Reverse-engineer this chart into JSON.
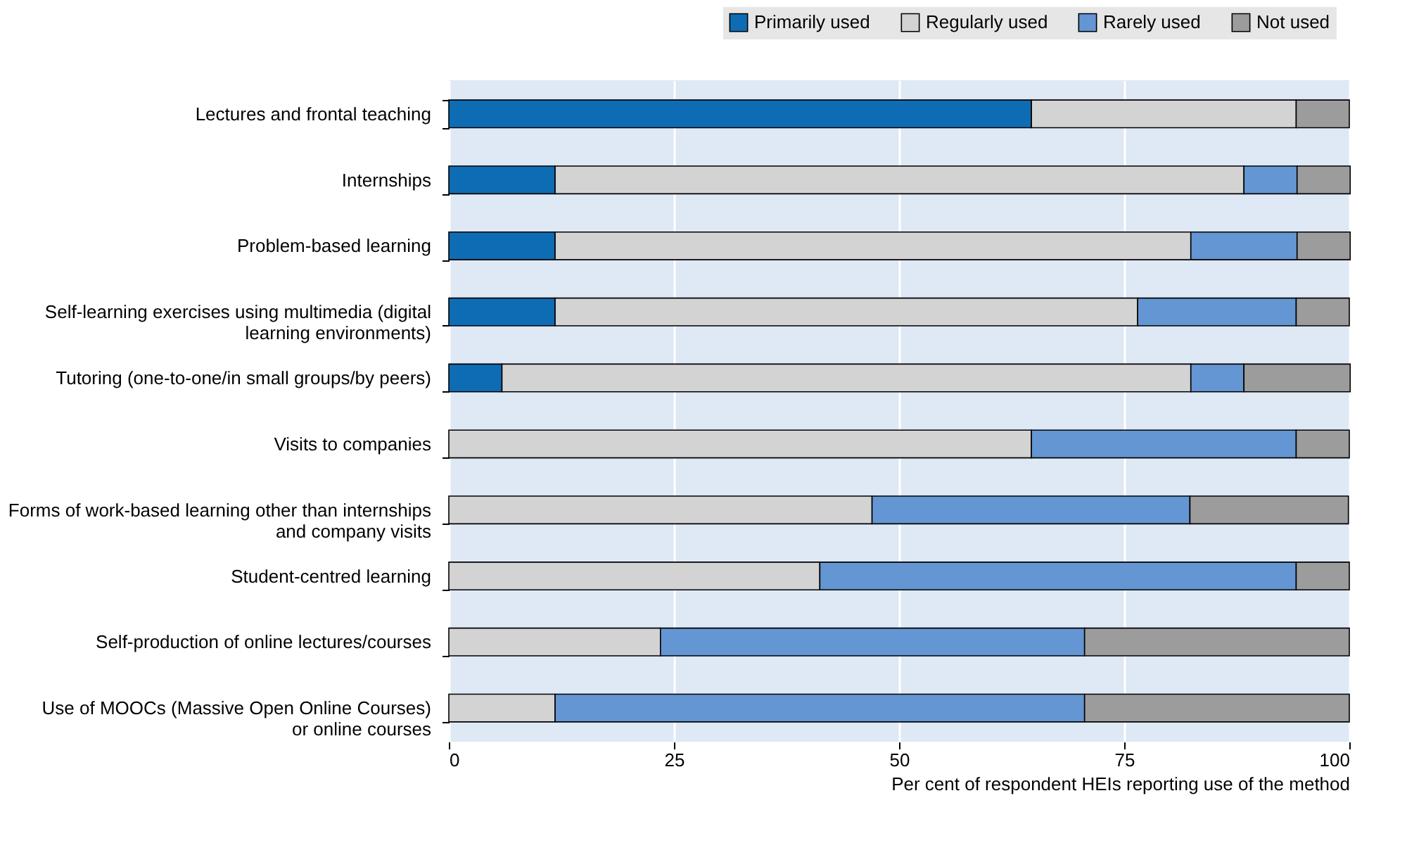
{
  "chart_data": {
    "type": "bar",
    "orientation": "horizontal",
    "stacked": true,
    "xlabel": "Per cent of respondent HEIs reporting use of the method",
    "categories": [
      "Lectures and frontal teaching",
      "Internships",
      "Problem-based learning",
      "Self-learning exercises using multimedia (digital\nlearning environments)",
      "Tutoring (one-to-one/in small groups/by peers)",
      "Visits to companies",
      "Forms of work-based learning other than internships\nand company visits",
      "Student-centred learning",
      "Self-production of online lectures/courses",
      "Use of MOOCs (Massive Open Online Courses)\nor online courses"
    ],
    "series": [
      {
        "name": "Primarily used",
        "color": "#0e6cb4",
        "values": [
          64.7,
          11.8,
          11.8,
          11.8,
          5.9,
          0,
          0,
          0,
          0,
          0
        ]
      },
      {
        "name": "Regularly used",
        "color": "#d3d3d3",
        "values": [
          29.4,
          76.5,
          70.6,
          64.7,
          76.5,
          64.7,
          47.0,
          41.2,
          23.5,
          11.8
        ]
      },
      {
        "name": "Rarely used",
        "color": "#6396d2",
        "values": [
          0,
          5.9,
          11.8,
          17.6,
          5.9,
          29.4,
          35.3,
          52.9,
          47.1,
          58.8
        ]
      },
      {
        "name": "Not used",
        "color": "#9c9c9c",
        "values": [
          5.9,
          5.9,
          5.9,
          5.9,
          11.8,
          5.9,
          17.6,
          5.9,
          29.4,
          29.4
        ]
      }
    ],
    "xlim": [
      0,
      100
    ],
    "xticks": [
      0,
      25,
      50,
      75,
      100
    ],
    "grid": "x",
    "legend": "top right"
  }
}
